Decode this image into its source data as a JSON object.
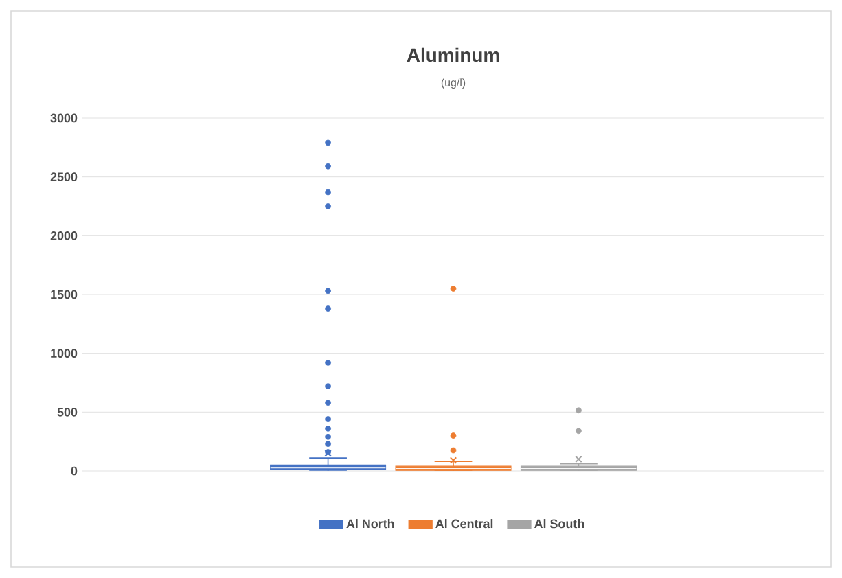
{
  "chart_data": {
    "type": "box",
    "title": "Aluminum",
    "subtitle": "(ug/l)",
    "categories": [
      null
    ],
    "ylim": [
      0,
      3000
    ],
    "yticks": [
      0,
      500,
      1000,
      1500,
      2000,
      2500,
      3000
    ],
    "grid": "y",
    "legend": "bottom",
    "marker": "circle",
    "series": [
      {
        "name": "Al North",
        "color": "#4472c4",
        "boxes": [
          {
            "low": 0,
            "q1": 10,
            "median": 25,
            "q3": 50,
            "high": 110,
            "mean": 150,
            "outliers": [
              2790,
              2590,
              2370,
              2250,
              1530,
              1380,
              920,
              720,
              580,
              440,
              360,
              290,
              230,
              160
            ]
          }
        ]
      },
      {
        "name": "Al Central",
        "color": "#ed7d31",
        "boxes": [
          {
            "low": 0,
            "q1": 5,
            "median": 20,
            "q3": 40,
            "high": 80,
            "mean": 90,
            "outliers": [
              1550,
              300,
              175
            ]
          }
        ]
      },
      {
        "name": "Al South",
        "color": "#a5a5a5",
        "boxes": [
          {
            "low": 0,
            "q1": 5,
            "median": 20,
            "q3": 40,
            "high": 60,
            "mean": 100,
            "outliers": [
              515,
              340
            ]
          }
        ]
      }
    ]
  }
}
